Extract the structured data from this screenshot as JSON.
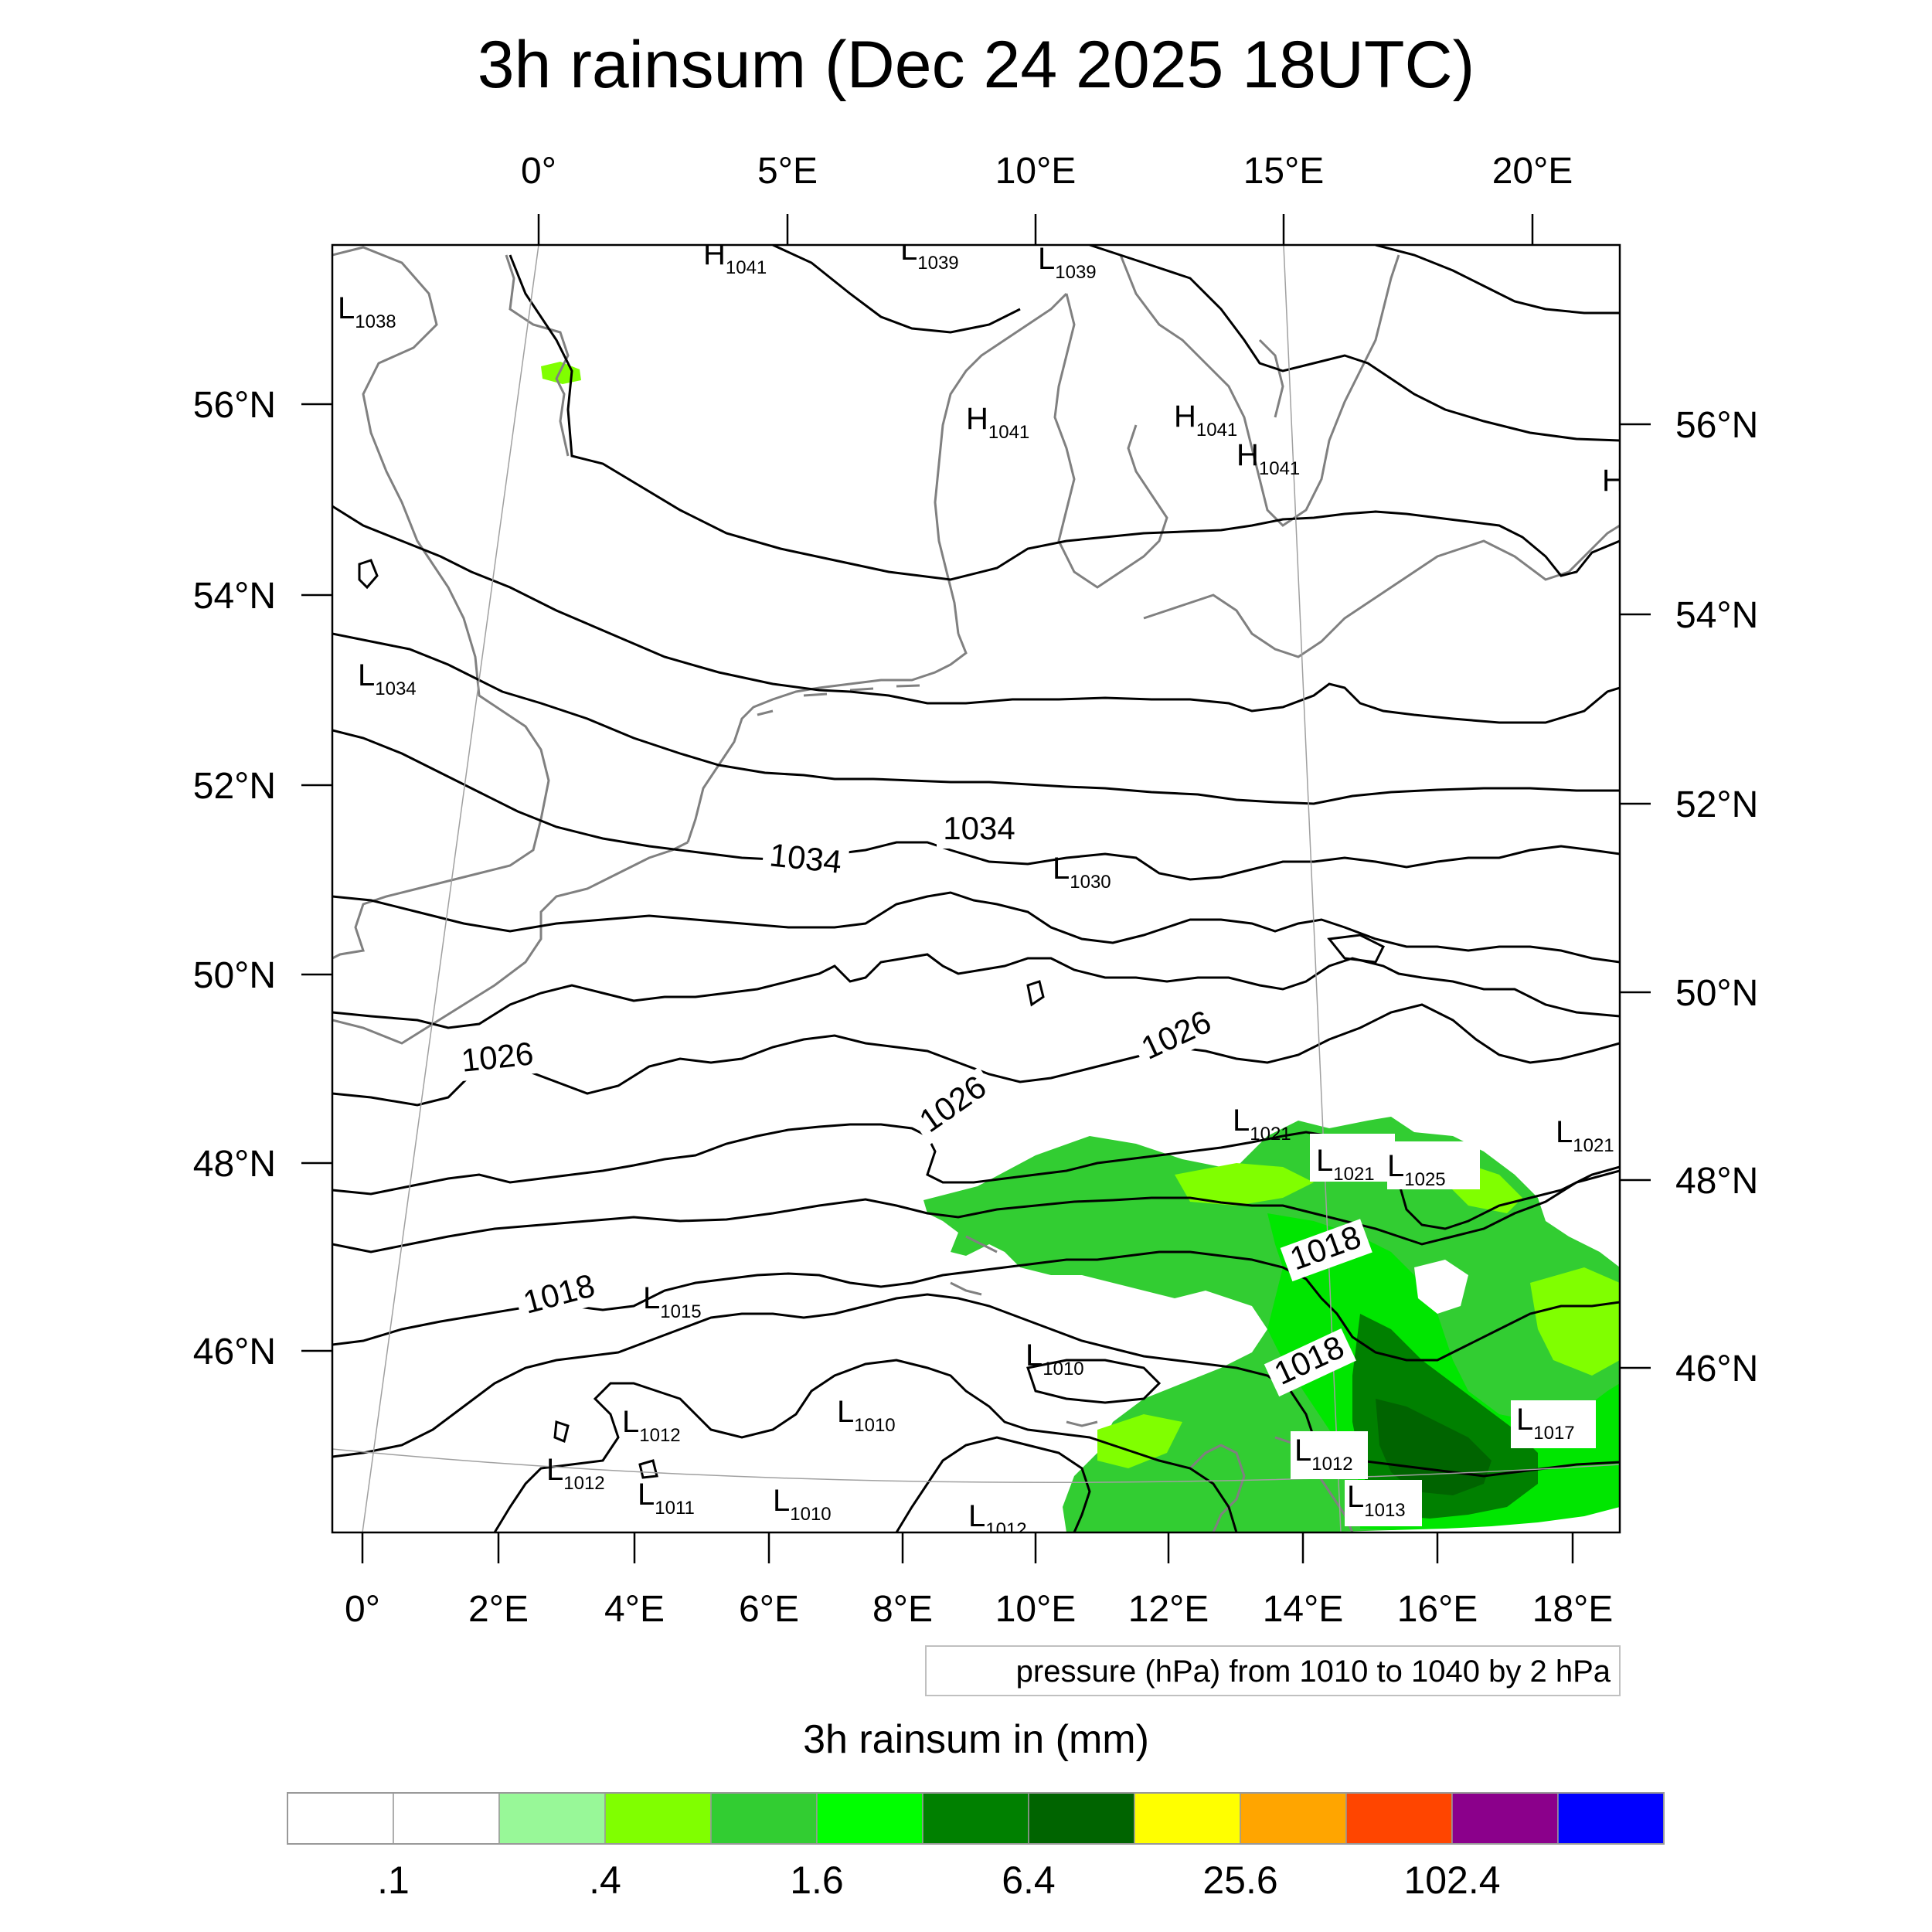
{
  "title": "3h rainsum (Dec 24 2025 18UTC)",
  "top_lon_labels": [
    "0°",
    "5°E",
    "10°E",
    "15°E",
    "20°E"
  ],
  "bottom_lon_labels": [
    "0°",
    "2°E",
    "4°E",
    "6°E",
    "8°E",
    "10°E",
    "12°E",
    "14°E",
    "16°E",
    "18°E"
  ],
  "left_lat_labels": [
    "56°N",
    "54°N",
    "52°N",
    "50°N",
    "48°N",
    "46°N"
  ],
  "right_lat_labels": [
    "56°N",
    "54°N",
    "52°N",
    "50°N",
    "48°N",
    "46°N"
  ],
  "contour_info": "pressure (hPa) from 1010 to 1040 by 2 hPa",
  "colorbar": {
    "title": "3h rainsum in (mm)",
    "colors": [
      "#ffffff",
      "#ffffff",
      "#98f898",
      "#80ff00",
      "#32cd32",
      "#00ff00",
      "#008000",
      "#006400",
      "#ffff00",
      "#ffa500",
      "#ff4500",
      "#8b008b",
      "#0000ff"
    ],
    "tick_labels": [
      ".1",
      ".4",
      "1.6",
      "6.4",
      "25.6",
      "102.4"
    ]
  },
  "contour_labels": [
    "1034",
    "1034",
    "1026",
    "1026",
    "1026",
    "1018",
    "1018",
    "1018"
  ],
  "pressure_centers": [
    {
      "kind": "H",
      "value": "1041"
    },
    {
      "kind": "L",
      "value": "1039"
    },
    {
      "kind": "L",
      "value": "1039"
    },
    {
      "kind": "L",
      "value": "1038"
    },
    {
      "kind": "H",
      "value": "1041"
    },
    {
      "kind": "H",
      "value": "1041"
    },
    {
      "kind": "H",
      "value": "1041"
    },
    {
      "kind": "H",
      "value": ""
    },
    {
      "kind": "L",
      "value": "1034"
    },
    {
      "kind": "L",
      "value": "1030"
    },
    {
      "kind": "L",
      "value": "1021"
    },
    {
      "kind": "L",
      "value": "1021"
    },
    {
      "kind": "L",
      "value": "1025"
    },
    {
      "kind": "L",
      "value": "1021"
    },
    {
      "kind": "L",
      "value": "1015"
    },
    {
      "kind": "L",
      "value": "1010"
    },
    {
      "kind": "L",
      "value": "1010"
    },
    {
      "kind": "L",
      "value": "1012"
    },
    {
      "kind": "L",
      "value": "1012"
    },
    {
      "kind": "L",
      "value": "1011"
    },
    {
      "kind": "L",
      "value": "1010"
    },
    {
      "kind": "L",
      "value": "1012"
    },
    {
      "kind": "L",
      "value": "1017"
    },
    {
      "kind": "L",
      "value": "1012"
    },
    {
      "kind": "L",
      "value": "1013"
    }
  ]
}
